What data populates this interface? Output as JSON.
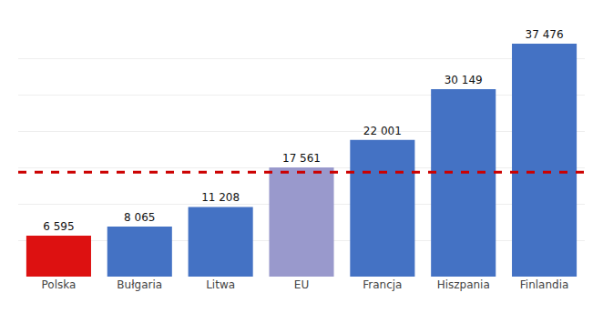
{
  "chart_data": {
    "type": "bar",
    "categories": [
      "Polska",
      "Bułgaria",
      "Litwa",
      "EU",
      "Francja",
      "Hiszpania",
      "Finlandia"
    ],
    "values": [
      6595,
      8065,
      11208,
      17561,
      22001,
      30149,
      37476
    ],
    "value_labels": [
      "6 595",
      "8 065",
      "11 208",
      "17 561",
      "22 001",
      "30 149",
      "37 476"
    ],
    "data_labels": true,
    "colors": [
      "#dd1111",
      "#4472c4",
      "#4472c4",
      "#9999cc",
      "#4472c4",
      "#4472c4",
      "#4472c4"
    ],
    "ylim": [
      0,
      41000
    ],
    "yticks": [
      0,
      5857.142857142857,
      11714.285714285714,
      17571.428571428572,
      23428.571428571428,
      29285.714285714286,
      35142.857142857145,
      41000
    ],
    "grid": true,
    "tick_labels": "x",
    "hline": {
      "value": 16800,
      "color": "#cc0000",
      "line_style": "dashed"
    }
  }
}
